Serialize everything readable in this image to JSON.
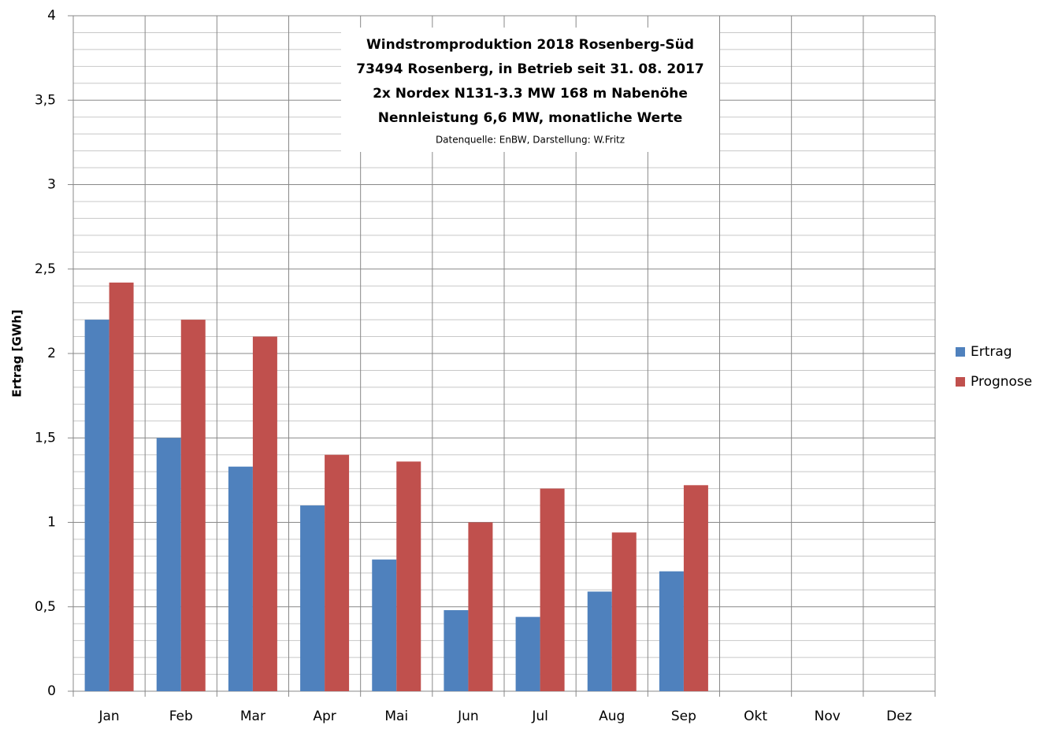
{
  "chart_data": {
    "type": "bar",
    "title_lines": [
      "Windstromproduktion  2018 Rosenberg-Süd",
      "73494 Rosenberg, in Betrieb seit 31. 08. 2017",
      "2x Nordex N131-3.3 MW 168 m Nabenöhe",
      "Nennleistung 6,6 MW, monatliche Werte"
    ],
    "source": "Datenquelle: EnBW, Darstellung: W.Fritz",
    "y_label": "Ertrag [GWh]",
    "categories": [
      "Jan",
      "Feb",
      "Mar",
      "Apr",
      "Mai",
      "Jun",
      "Jul",
      "Aug",
      "Sep",
      "Okt",
      "Nov",
      "Dez"
    ],
    "series": [
      {
        "name": "Ertrag",
        "color": "#4f81bd",
        "values": [
          2.2,
          1.5,
          1.33,
          1.1,
          0.78,
          0.48,
          0.44,
          0.59,
          0.71,
          null,
          null,
          null
        ]
      },
      {
        "name": "Prognose",
        "color": "#c0504d",
        "values": [
          2.42,
          2.2,
          2.1,
          1.4,
          1.36,
          1.0,
          1.2,
          0.94,
          1.22,
          null,
          null,
          null
        ]
      }
    ],
    "ylim": [
      0,
      4
    ],
    "yticks": [
      0,
      {
        "value": 0.5,
        "label": "0,5"
      },
      1,
      {
        "value": 1.5,
        "label": "1,5"
      },
      2,
      {
        "value": 2.5,
        "label": "2,5"
      },
      3,
      {
        "value": 3.5,
        "label": "3,5"
      },
      4
    ],
    "minor_grid_divisions": 5,
    "grid": true,
    "legend": "right"
  }
}
